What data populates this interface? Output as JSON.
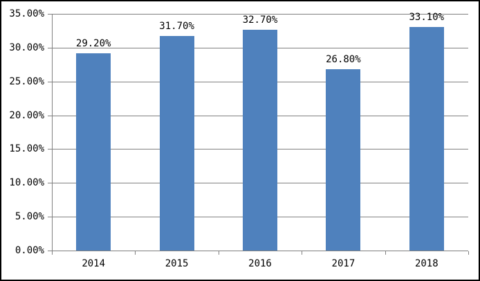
{
  "chart_data": {
    "type": "bar",
    "title": "",
    "xlabel": "",
    "ylabel": "",
    "categories": [
      "2014",
      "2015",
      "2016",
      "2017",
      "2018"
    ],
    "values": [
      29.2,
      31.7,
      32.7,
      26.8,
      33.1
    ],
    "data_labels": [
      "29.20%",
      "31.70%",
      "32.70%",
      "26.80%",
      "33.10%"
    ],
    "y_tick_labels": [
      "35.00%",
      "30.00%",
      "25.00%",
      "20.00%",
      "15.00%",
      "10.00%",
      "5.00%",
      "0.00%"
    ],
    "ylim": [
      0,
      35
    ],
    "y_step": 5,
    "grid": true,
    "legend_position": "none",
    "colors": {
      "bar_fill": "#4F81BD",
      "gridline": "#808080",
      "axis": "#808080",
      "text": "#000000",
      "chart_border": "#000000",
      "background": "#ffffff"
    }
  }
}
